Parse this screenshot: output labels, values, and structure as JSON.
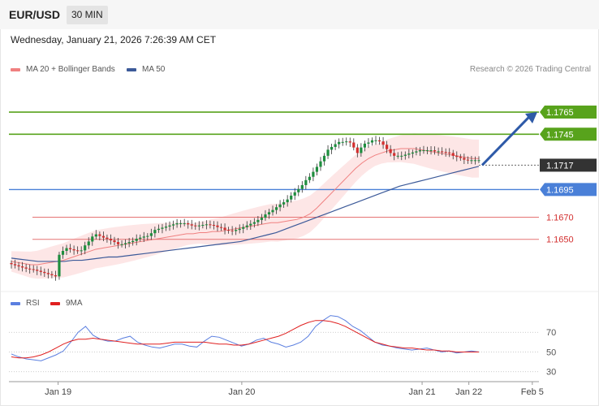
{
  "header": {
    "symbol": "EUR/USD",
    "timeframe": "30 MIN",
    "datetime": "Wednesday, January 21, 2026 7:26:39 AM CET",
    "credit": "Research © 2026 Trading Central"
  },
  "colors": {
    "up": "#1e8e3e",
    "down": "#d32f2f",
    "ma20": "#f08080",
    "band": "#fde0e0",
    "ma50": "#3c5a99",
    "resistance": "#58a31c",
    "pivot": "#4a80d8",
    "support": "#e57373",
    "current": "#333333",
    "arrow": "#2e5aa8",
    "rsi": "#5b7fe0",
    "rsi_ma": "#e02020"
  },
  "chart_data": [
    {
      "type": "candlestick",
      "legend": [
        {
          "name": "MA 20 + Bollinger Bands",
          "color": "#f08080"
        },
        {
          "name": "MA 50",
          "color": "#3c5a99"
        }
      ],
      "ylim": [
        1.1605,
        1.179
      ],
      "xlim": [
        0,
        140
      ],
      "x_ticks": [
        {
          "x": 14,
          "label": "Jan 19"
        },
        {
          "x": 69,
          "label": "Jan 20"
        },
        {
          "x": 123,
          "label": "Jan 21"
        },
        {
          "x": 137,
          "label": "Jan 22"
        },
        {
          "x": 156,
          "label": "Feb 5"
        }
      ],
      "levels": [
        {
          "value": 1.1765,
          "label": "1.1765",
          "kind": "resistance"
        },
        {
          "value": 1.1745,
          "label": "1.1745",
          "kind": "resistance"
        },
        {
          "value": 1.1717,
          "label": "1.1717",
          "kind": "current"
        },
        {
          "value": 1.1695,
          "label": "1.1695",
          "kind": "pivot"
        },
        {
          "value": 1.167,
          "label": "1.1670",
          "kind": "support"
        },
        {
          "value": 1.165,
          "label": "1.1650",
          "kind": "support"
        }
      ],
      "candles_close": [
        1.16275,
        1.16265,
        1.16255,
        1.16245,
        1.16235,
        1.1623,
        1.16225,
        1.16215,
        1.16205,
        1.16195,
        1.16185,
        1.16175,
        1.16165,
        1.1636,
        1.16395,
        1.1642,
        1.1641,
        1.164,
        1.16395,
        1.164,
        1.16445,
        1.1648,
        1.16525,
        1.16545,
        1.1653,
        1.16515,
        1.16505,
        1.1649,
        1.16475,
        1.16455,
        1.16455,
        1.16465,
        1.16475,
        1.16485,
        1.16505,
        1.16515,
        1.16525,
        1.1653,
        1.16555,
        1.16585,
        1.16595,
        1.16605,
        1.16615,
        1.16625,
        1.16635,
        1.16645,
        1.16645,
        1.16645,
        1.16635,
        1.16625,
        1.1662,
        1.16625,
        1.1663,
        1.16635,
        1.1663,
        1.16625,
        1.1661,
        1.16605,
        1.16585,
        1.1658,
        1.16575,
        1.16585,
        1.16595,
        1.1661,
        1.16625,
        1.1664,
        1.16655,
        1.16675,
        1.16695,
        1.16725,
        1.16745,
        1.16765,
        1.1679,
        1.16815,
        1.16835,
        1.1686,
        1.16895,
        1.16925,
        1.16955,
        1.1699,
        1.17035,
        1.17065,
        1.1711,
        1.17155,
        1.17205,
        1.17255,
        1.1731,
        1.17335,
        1.1736,
        1.1738,
        1.1738,
        1.17385,
        1.17375,
        1.1733,
        1.1728,
        1.1733,
        1.17365,
        1.17375,
        1.17395,
        1.17395,
        1.17385,
        1.17355,
        1.17315,
        1.1728,
        1.17255,
        1.17255,
        1.17255,
        1.17265,
        1.17275,
        1.17285,
        1.17295,
        1.17305,
        1.17305,
        1.17305,
        1.17305,
        1.17295,
        1.17295,
        1.1729,
        1.17285,
        1.1728,
        1.17255,
        1.17245,
        1.17235,
        1.1722,
        1.17215,
        1.17215,
        1.17215,
        1.17215
      ],
      "ma20": [
        1.163,
        1.1629,
        1.1628,
        1.1627,
        1.1627,
        1.1628,
        1.1629,
        1.163,
        1.1631,
        1.1633,
        1.1635,
        1.1637,
        1.1639,
        1.1641,
        1.1642,
        1.1643,
        1.1644,
        1.1645,
        1.1646,
        1.1647,
        1.1648,
        1.1649,
        1.165,
        1.1651,
        1.1652,
        1.1653,
        1.1654,
        1.1655,
        1.1655,
        1.1656,
        1.1656,
        1.1657,
        1.1657,
        1.1658,
        1.1659,
        1.166,
        1.1661,
        1.1662,
        1.1663,
        1.1664,
        1.1665,
        1.1665,
        1.1666,
        1.1667,
        1.1668,
        1.167,
        1.1673,
        1.1678,
        1.1684,
        1.169,
        1.1696,
        1.1702,
        1.1708,
        1.1714,
        1.1719,
        1.1723,
        1.1726,
        1.1728,
        1.173,
        1.1731,
        1.1732,
        1.1732,
        1.1732,
        1.1731,
        1.173,
        1.1729,
        1.1728,
        1.1727,
        1.1726,
        1.1725,
        1.1724,
        1.1723,
        1.1723
      ],
      "ma50": [
        1.1633,
        1.1632,
        1.1631,
        1.163,
        1.163,
        1.163,
        1.163,
        1.1631,
        1.1631,
        1.1632,
        1.1633,
        1.1634,
        1.1634,
        1.1635,
        1.1636,
        1.1637,
        1.1638,
        1.1639,
        1.164,
        1.1641,
        1.1642,
        1.1643,
        1.1644,
        1.1645,
        1.1646,
        1.1647,
        1.1648,
        1.165,
        1.1652,
        1.1654,
        1.1656,
        1.1659,
        1.1662,
        1.1665,
        1.1668,
        1.1671,
        1.1674,
        1.1677,
        1.168,
        1.1683,
        1.1686,
        1.1689,
        1.1692,
        1.1695,
        1.1698,
        1.17,
        1.1702,
        1.1704,
        1.1706,
        1.1708,
        1.171,
        1.1712,
        1.1714,
        1.1716
      ]
    },
    {
      "type": "line",
      "legend": [
        {
          "name": "RSI",
          "color": "#5b7fe0"
        },
        {
          "name": "9MA",
          "color": "#e02020"
        }
      ],
      "ylim": [
        24,
        90
      ],
      "y_ticks": [
        70,
        50,
        30
      ],
      "rsi": [
        48,
        45,
        43,
        42,
        41,
        44,
        47,
        51,
        60,
        70,
        76,
        67,
        63,
        61,
        61,
        64,
        66,
        60,
        57,
        55,
        54,
        56,
        58,
        58,
        56,
        55,
        61,
        66,
        65,
        62,
        59,
        56,
        58,
        62,
        64,
        60,
        58,
        55,
        57,
        60,
        66,
        76,
        82,
        87,
        86,
        82,
        76,
        72,
        66,
        60,
        57,
        56,
        54,
        53,
        52,
        53,
        54,
        52,
        50,
        51,
        49,
        50,
        51,
        50
      ],
      "rsi_ma": [
        45,
        44,
        44,
        45,
        47,
        50,
        54,
        58,
        61,
        63,
        63,
        64,
        63,
        62,
        61,
        60,
        59,
        58,
        58,
        58,
        58,
        59,
        60,
        60,
        60,
        60,
        60,
        59,
        58,
        58,
        57,
        57,
        58,
        60,
        62,
        64,
        66,
        69,
        73,
        77,
        80,
        82,
        82,
        81,
        79,
        76,
        72,
        68,
        64,
        60,
        58,
        56,
        55,
        54,
        54,
        53,
        52,
        52,
        51,
        51,
        50,
        50,
        50,
        50
      ]
    }
  ],
  "indicator_legend": {
    "rsi": "RSI",
    "rsi_ma": "9MA"
  }
}
